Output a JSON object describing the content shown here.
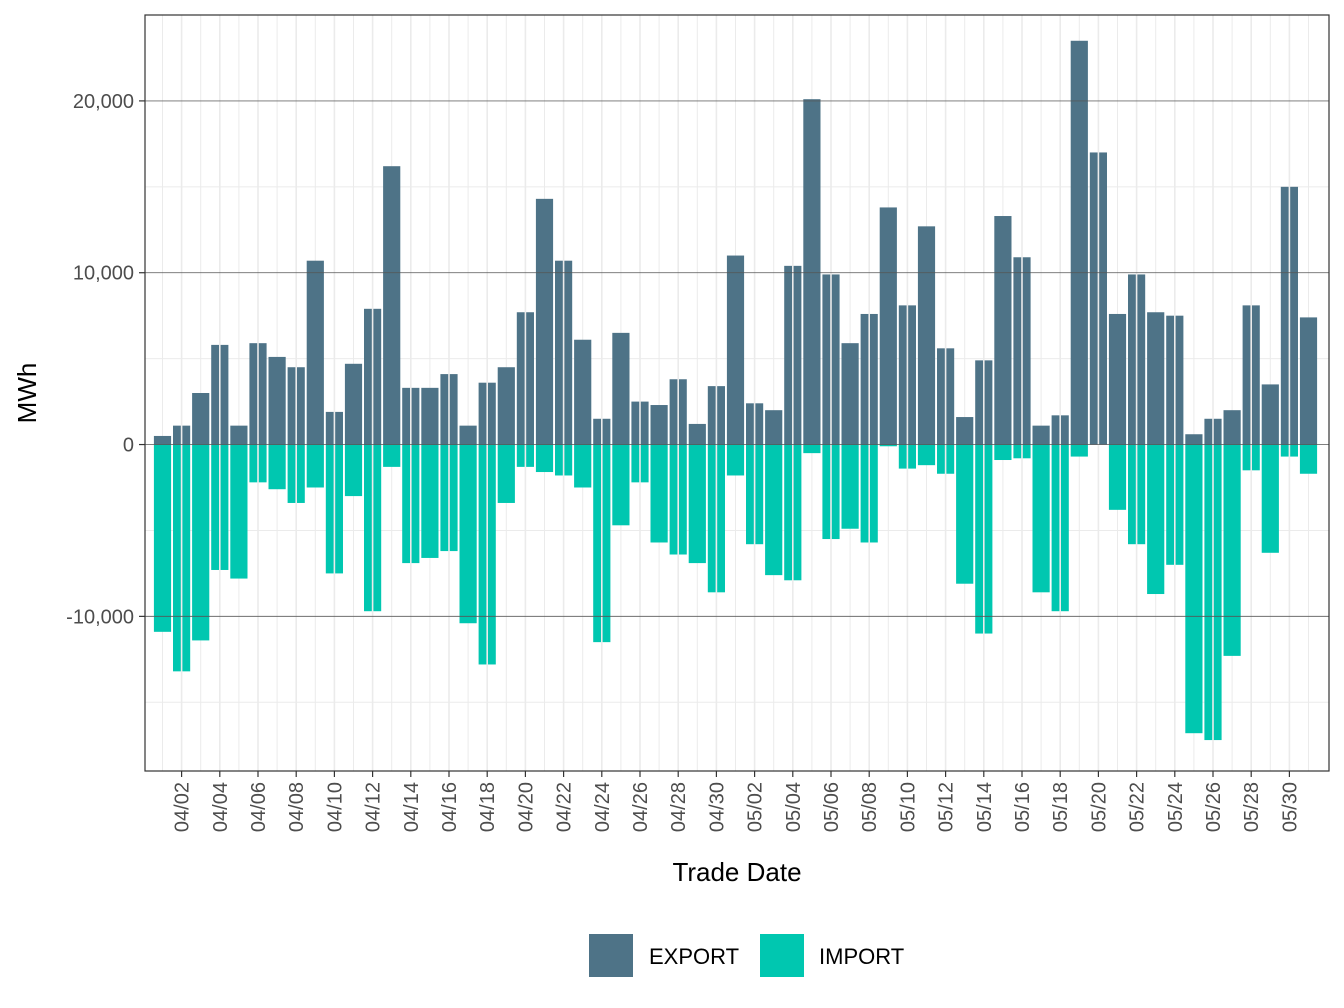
{
  "colors": {
    "export": "#4E7387",
    "import": "#00C7B0"
  },
  "chart_data": {
    "type": "bar",
    "stacked": true,
    "title": "",
    "xlabel": "Trade Date",
    "ylabel": "MWh",
    "ylim": [
      -19000,
      25000
    ],
    "yticks": [
      -10000,
      0,
      10000,
      20000
    ],
    "ytick_labels": [
      "-10,000",
      "0",
      "10,000",
      "20,000"
    ],
    "categories": [
      "04/01",
      "04/02",
      "04/03",
      "04/04",
      "04/05",
      "04/06",
      "04/07",
      "04/08",
      "04/09",
      "04/10",
      "04/11",
      "04/12",
      "04/13",
      "04/14",
      "04/15",
      "04/16",
      "04/17",
      "04/18",
      "04/19",
      "04/20",
      "04/21",
      "04/22",
      "04/23",
      "04/24",
      "04/25",
      "04/26",
      "04/27",
      "04/28",
      "04/29",
      "04/30",
      "05/01",
      "05/02",
      "05/03",
      "05/04",
      "05/05",
      "05/06",
      "05/07",
      "05/08",
      "05/09",
      "05/10",
      "05/11",
      "05/12",
      "05/13",
      "05/14",
      "05/15",
      "05/16",
      "05/17",
      "05/18",
      "05/19",
      "05/20",
      "05/21",
      "05/22",
      "05/23",
      "05/24",
      "05/25",
      "05/26",
      "05/27",
      "05/28",
      "05/29",
      "05/30",
      "05/31"
    ],
    "xtick_labels": [
      "04/02",
      "04/04",
      "04/06",
      "04/08",
      "04/10",
      "04/12",
      "04/14",
      "04/16",
      "04/18",
      "04/20",
      "04/22",
      "04/24",
      "04/26",
      "04/28",
      "04/30",
      "05/02",
      "05/04",
      "05/06",
      "05/08",
      "05/10",
      "05/12",
      "05/14",
      "05/16",
      "05/18",
      "05/20",
      "05/22",
      "05/24",
      "05/26",
      "05/28",
      "05/30"
    ],
    "series": [
      {
        "name": "EXPORT",
        "values": [
          500,
          1100,
          3000,
          5800,
          1100,
          5900,
          5100,
          4500,
          10700,
          1900,
          4700,
          7900,
          16200,
          3300,
          3300,
          4100,
          1100,
          3600,
          4500,
          7700,
          14300,
          10700,
          6100,
          1500,
          6500,
          2500,
          2300,
          3800,
          1200,
          3400,
          11000,
          2400,
          2000,
          10400,
          20100,
          9900,
          5900,
          7600,
          13800,
          8100,
          12700,
          5600,
          1600,
          4900,
          13300,
          10900,
          1100,
          1700,
          23500,
          17000,
          7600,
          9900,
          7700,
          7500,
          600,
          1500,
          2000,
          8100,
          3500,
          15000,
          7400
        ]
      },
      {
        "name": "IMPORT",
        "values": [
          -10900,
          -13200,
          -11400,
          -7300,
          -7800,
          -2200,
          -2600,
          -3400,
          -2500,
          -7500,
          -3000,
          -9700,
          -1300,
          -6900,
          -6600,
          -6200,
          -10400,
          -12800,
          -3400,
          -1300,
          -1600,
          -1800,
          -2500,
          -11500,
          -4700,
          -2200,
          -5700,
          -6400,
          -6900,
          -8600,
          -1800,
          -5800,
          -7600,
          -7900,
          -500,
          -5500,
          -4900,
          -5700,
          -100,
          -1400,
          -1200,
          -1700,
          -8100,
          -11000,
          -900,
          -800,
          -8600,
          -9700,
          -700,
          0,
          -3800,
          -5800,
          -8700,
          -7000,
          -16800,
          -17200,
          -12300,
          -1500,
          -6300,
          -700,
          -1700
        ]
      }
    ],
    "legend": {
      "position": "bottom",
      "entries": [
        "EXPORT",
        "IMPORT"
      ]
    }
  }
}
